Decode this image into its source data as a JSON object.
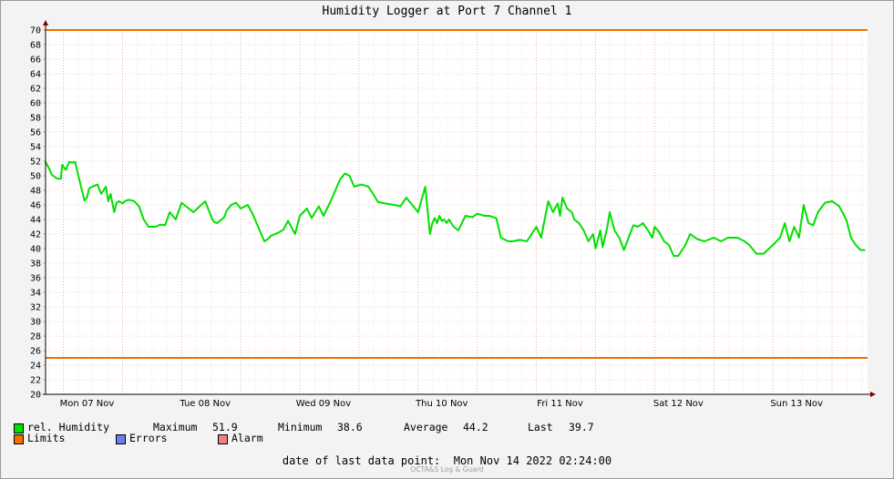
{
  "chart_data": {
    "type": "line",
    "title": "Humidity Logger at Port 7 Channel 1",
    "ylim": [
      20,
      70
    ],
    "ytick_step": 2,
    "x_ticks": [
      "Mon 07 Nov",
      "Tue 08 Nov",
      "Wed 09 Nov",
      "Thu 10 Nov",
      "Fri 11 Nov",
      "Sat 12 Nov",
      "Sun 13 Nov"
    ],
    "x_range_days": [
      -0.15,
      6.8
    ],
    "limits": {
      "upper": 70,
      "lower": 25
    },
    "grid": true,
    "series": [
      {
        "name": "rel. Humidity",
        "color": "#00e000",
        "x_days": [
          -0.15,
          -0.12,
          -0.1,
          -0.07,
          -0.05,
          -0.02,
          -0.01,
          0.02,
          0.03,
          0.05,
          0.08,
          0.1,
          0.15,
          0.18,
          0.2,
          0.22,
          0.26,
          0.29,
          0.32,
          0.36,
          0.38,
          0.4,
          0.43,
          0.45,
          0.47,
          0.5,
          0.52,
          0.55,
          0.58,
          0.6,
          0.64,
          0.68,
          0.72,
          0.78,
          0.82,
          0.86,
          0.9,
          0.95,
          1.0,
          1.1,
          1.2,
          1.26,
          1.28,
          1.3,
          1.36,
          1.38,
          1.42,
          1.46,
          1.5,
          1.56,
          1.6,
          1.66,
          1.7,
          1.72,
          1.76,
          1.82,
          1.86,
          1.9,
          1.96,
          2.0,
          2.06,
          2.1,
          2.16,
          2.2,
          2.26,
          2.3,
          2.34,
          2.38,
          2.42,
          2.46,
          2.52,
          2.58,
          2.62,
          2.66,
          2.72,
          2.76,
          2.8,
          2.85,
          2.9,
          2.95,
          3.0,
          3.06,
          3.1,
          3.12,
          3.14,
          3.16,
          3.18,
          3.2,
          3.22,
          3.24,
          3.26,
          3.3,
          3.34,
          3.4,
          3.46,
          3.5,
          3.56,
          3.6,
          3.66,
          3.7,
          3.76,
          3.8,
          3.86,
          3.92,
          4.0,
          4.04,
          4.1,
          4.14,
          4.18,
          4.2,
          4.22,
          4.26,
          4.3,
          4.32,
          4.36,
          4.4,
          4.44,
          4.48,
          4.5,
          4.54,
          4.56,
          4.6,
          4.62,
          4.66,
          4.7,
          4.74,
          4.78,
          4.82,
          4.86,
          4.9,
          4.94,
          4.98,
          5.0,
          5.04,
          5.08,
          5.12,
          5.16,
          5.2,
          5.26,
          5.3,
          5.36,
          5.42,
          5.5,
          5.56,
          5.62,
          5.7,
          5.76,
          5.8,
          5.86,
          5.92,
          6.0,
          6.06,
          6.1,
          6.14,
          6.18,
          6.22,
          6.26,
          6.3,
          6.34,
          6.38,
          6.44,
          6.5,
          6.56,
          6.62,
          6.66,
          6.7,
          6.74,
          6.78
        ],
        "values": [
          51.9,
          51.0,
          50.2,
          49.8,
          49.6,
          49.6,
          51.5,
          50.8,
          51.2,
          51.9,
          51.8,
          51.9,
          48.5,
          46.6,
          47.0,
          48.3,
          48.6,
          48.8,
          47.5,
          48.5,
          46.5,
          47.5,
          45.0,
          46.3,
          46.5,
          46.2,
          46.5,
          46.7,
          46.6,
          46.5,
          45.8,
          44.0,
          43.0,
          43.0,
          43.3,
          43.2,
          45.0,
          44.0,
          46.3,
          45.0,
          46.5,
          44.0,
          43.6,
          43.5,
          44.3,
          45.2,
          46.0,
          46.3,
          45.5,
          46.0,
          44.8,
          42.5,
          41.0,
          41.2,
          41.8,
          42.2,
          42.6,
          43.8,
          42.0,
          44.5,
          45.5,
          44.2,
          45.8,
          44.5,
          46.5,
          48.0,
          49.5,
          50.3,
          50.0,
          48.5,
          48.8,
          48.5,
          47.5,
          46.4,
          46.2,
          46.1,
          46.0,
          45.8,
          47.0,
          46.0,
          45.0,
          48.5,
          42.0,
          43.5,
          44.2,
          43.5,
          44.5,
          43.8,
          44.0,
          43.5,
          44.0,
          43.0,
          42.5,
          44.5,
          44.3,
          44.8,
          44.5,
          44.5,
          44.2,
          41.5,
          41.0,
          41.0,
          41.2,
          41.0,
          43.0,
          41.5,
          46.5,
          45.0,
          46.2,
          44.5,
          47.0,
          45.5,
          45.0,
          44.0,
          43.5,
          42.5,
          41.0,
          42.0,
          40.0,
          42.5,
          40.2,
          43.0,
          45.0,
          42.5,
          41.5,
          39.8,
          41.5,
          43.2,
          43.0,
          43.5,
          42.6,
          41.5,
          43.0,
          42.2,
          41.0,
          40.5,
          39.0,
          39.0,
          40.5,
          42.0,
          41.3,
          41.0,
          41.5,
          41.0,
          41.5,
          41.5,
          41.0,
          40.5,
          39.3,
          39.3,
          40.5,
          41.5,
          43.5,
          41.0,
          43.0,
          41.5,
          46.0,
          43.5,
          43.2,
          45.0,
          46.3,
          46.5,
          45.8,
          44.0,
          41.5,
          40.5,
          39.8,
          39.8
        ]
      }
    ],
    "stats": {
      "maximum_label": "Maximum",
      "maximum": "51.9",
      "minimum_label": "Minimum",
      "minimum": "38.6",
      "average_label": "Average",
      "average": "44.2",
      "last_label": "Last",
      "last": "39.7"
    }
  },
  "legend": {
    "humidity": "rel. Humidity",
    "limits": "Limits",
    "errors": "Errors",
    "alarm": "Alarm",
    "colors": {
      "humidity": "#00e000",
      "limits": "#f07000",
      "errors": "#6b7ff0",
      "alarm": "#f08080"
    }
  },
  "footer": {
    "label": "date of last data point:",
    "value": "Mon Nov 14 2022 02:24:00"
  },
  "brand": "OCTA&S Log & Guard"
}
